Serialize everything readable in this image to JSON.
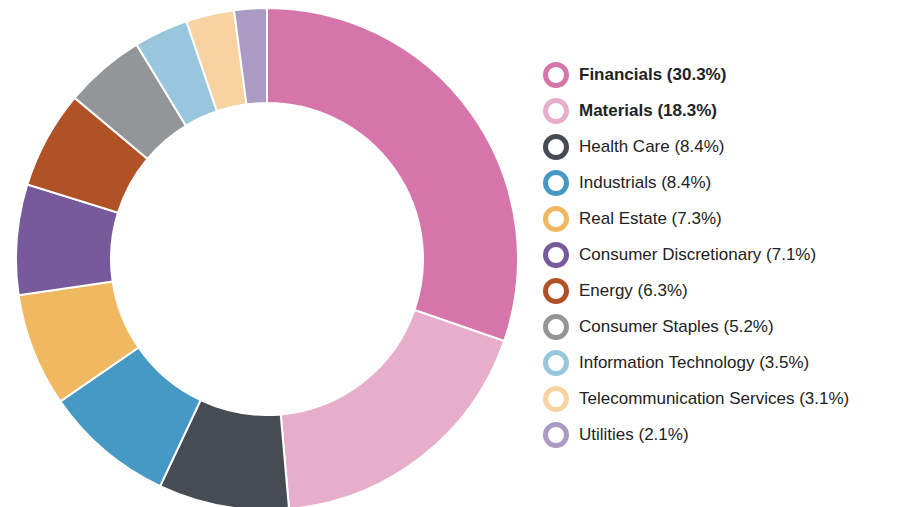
{
  "chart_data": {
    "type": "pie",
    "categories": [
      "Financials (30.3%)",
      "Materials (18.3%)",
      "Health Care (8.4%)",
      "Industrials (8.4%)",
      "Real Estate (7.3%)",
      "Consumer Discretionary (7.1%)",
      "Energy (6.3%)",
      "Consumer Staples (5.2%)",
      "Information Technology (3.5%)",
      "Telecommunication Services (3.1%)",
      "Utilities (2.1%)"
    ],
    "values": [
      30.3,
      18.3,
      8.4,
      8.4,
      7.3,
      7.1,
      6.3,
      5.2,
      3.5,
      3.1,
      2.1
    ],
    "colors": [
      "#d575a9",
      "#e6aecb",
      "#474b54",
      "#4799c5",
      "#f0b860",
      "#765a9b",
      "#b05225",
      "#939598",
      "#97c6dd",
      "#f8d3a2",
      "#ab9bc4"
    ]
  }
}
